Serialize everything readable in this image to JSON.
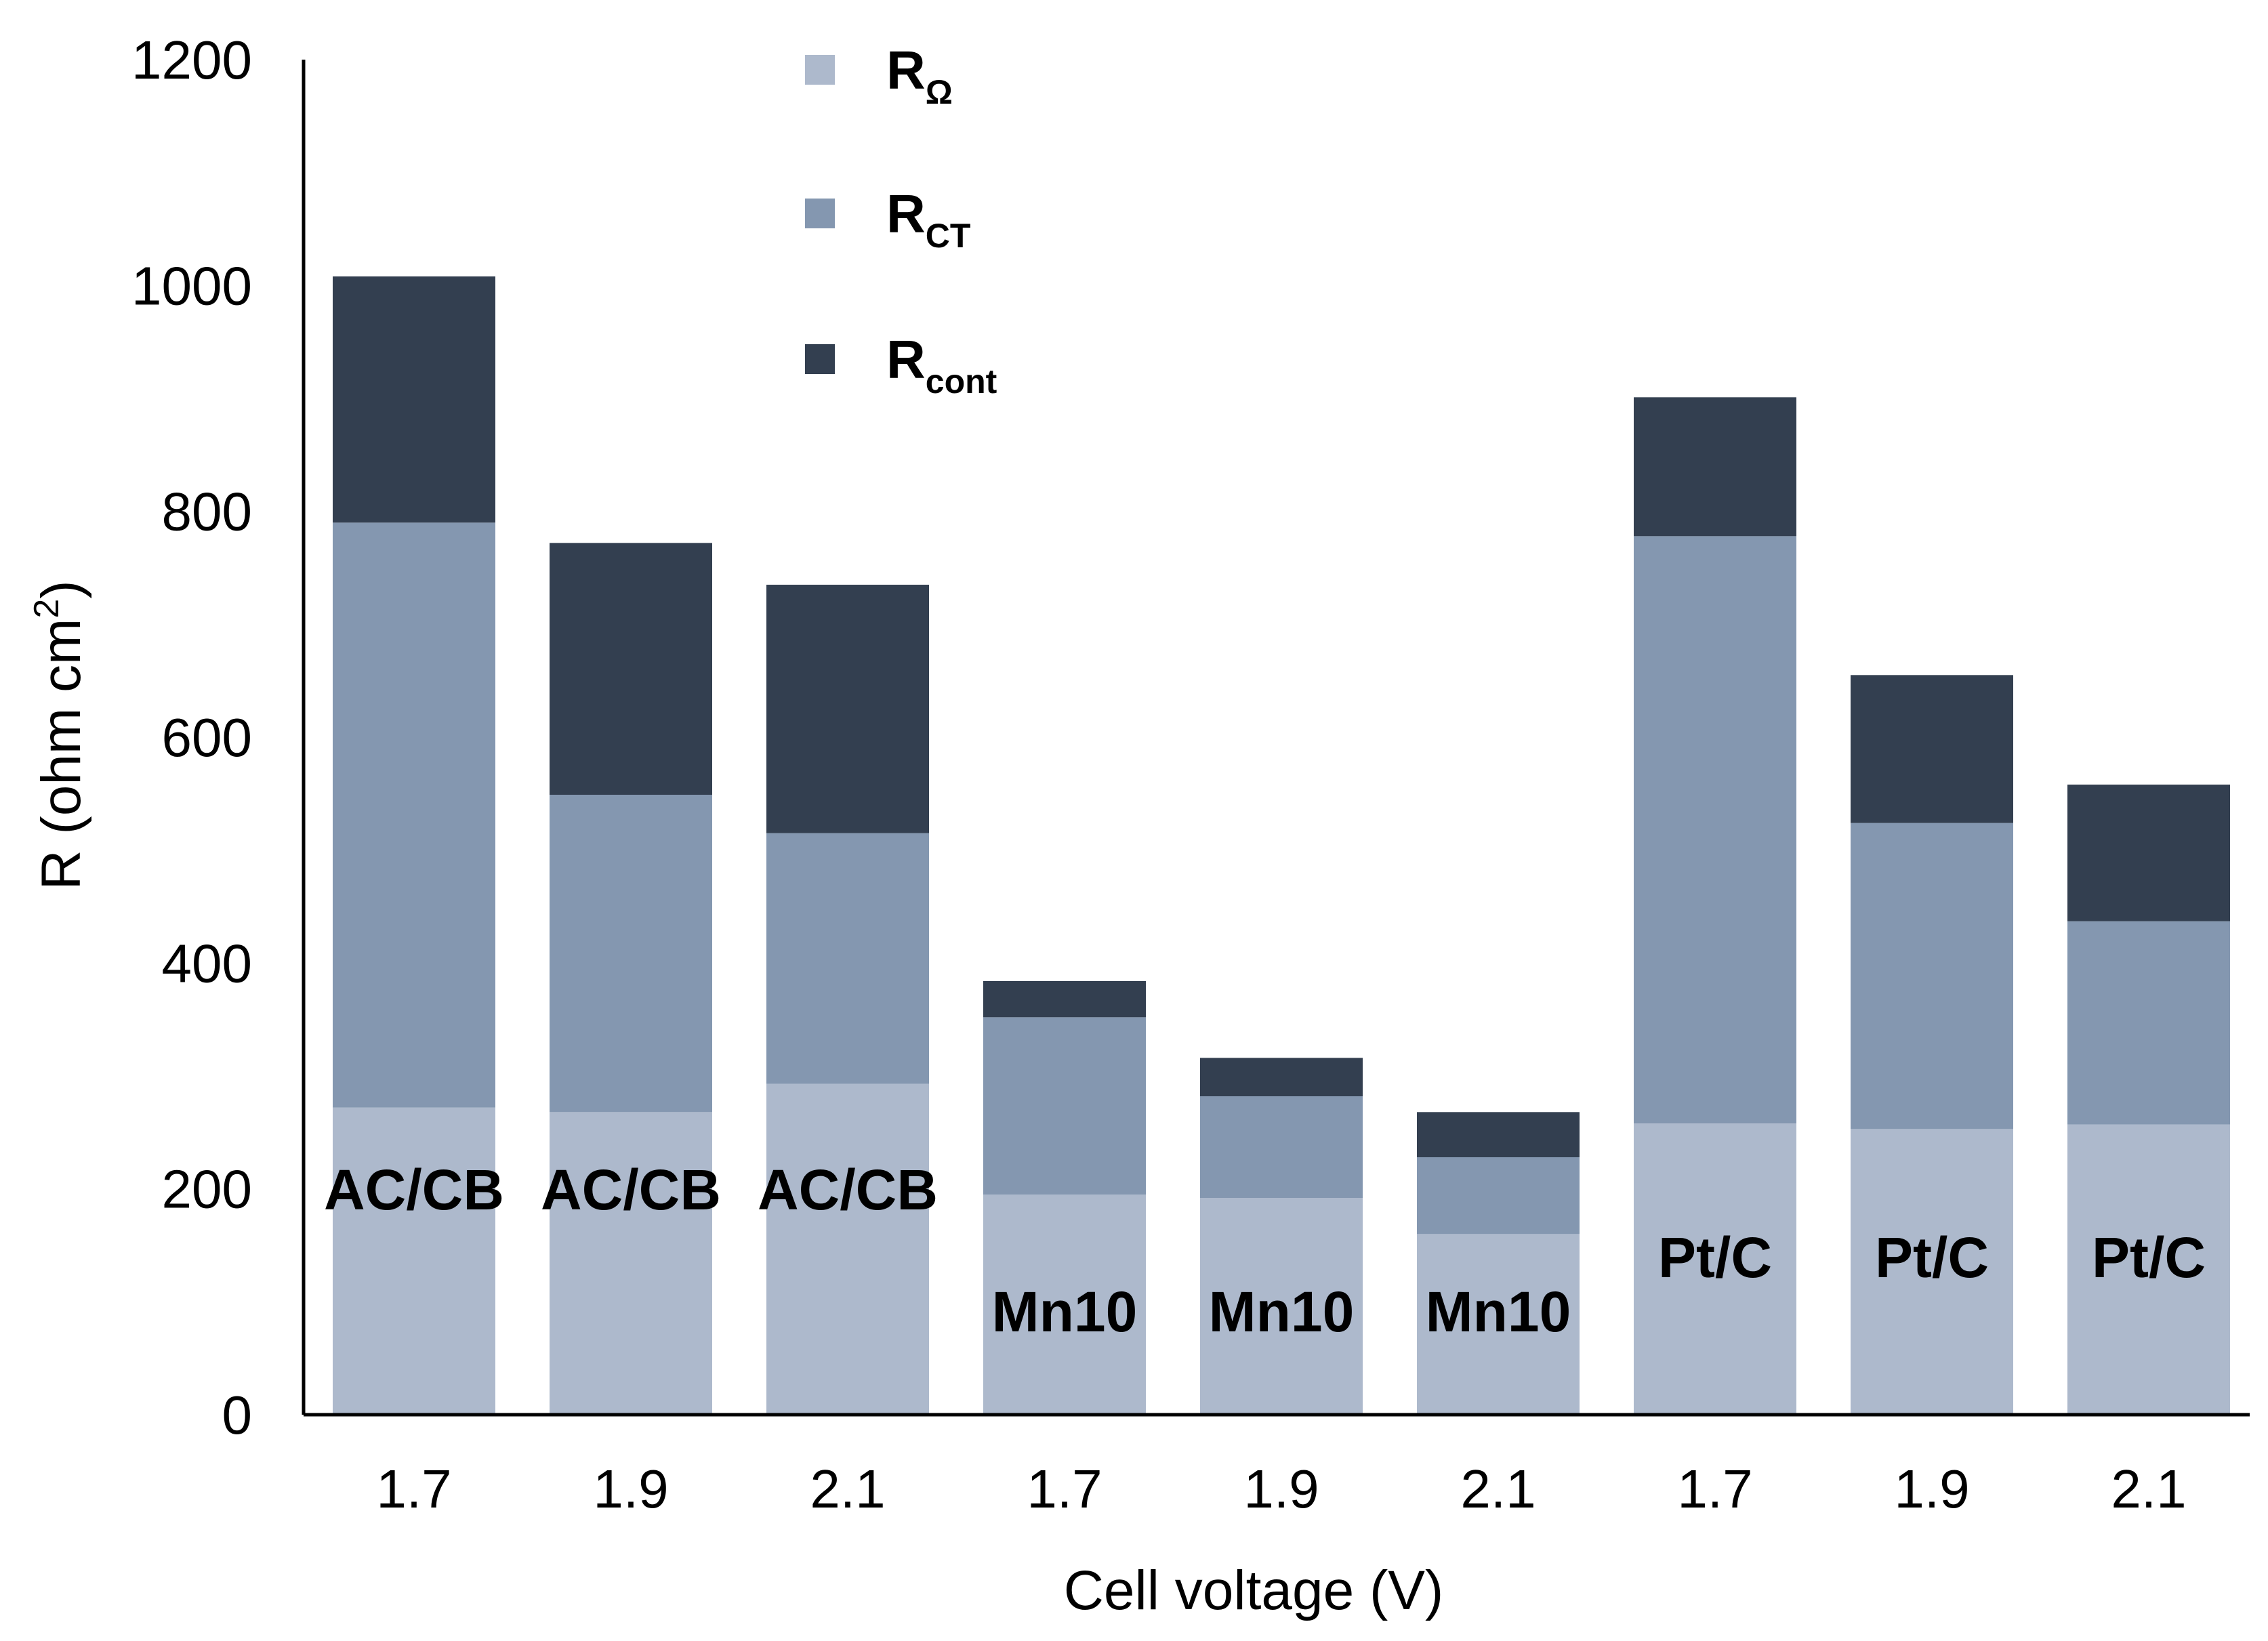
{
  "chart_data": {
    "type": "bar",
    "stacked": true,
    "title": "",
    "xlabel": "Cell voltage  (V)",
    "ylabel": "R (ohm cm²)",
    "ylabel_parts": {
      "main": "R (ohm cm",
      "sup": "2",
      "end": ")"
    },
    "ylim": [
      0,
      1200
    ],
    "yticks": [
      0,
      200,
      400,
      600,
      800,
      1000,
      1200
    ],
    "categories": [
      "1.7",
      "1.9",
      "2.1",
      "1.7",
      "1.9",
      "2.1",
      "1.7",
      "1.9",
      "2.1"
    ],
    "group_labels": [
      "AC/CB",
      "AC/CB",
      "AC/CB",
      "Mn10",
      "Mn10",
      "Mn10",
      "Pt/C",
      "Pt/C",
      "Pt/C"
    ],
    "series": [
      {
        "name": "RΩ",
        "base": "R",
        "sub": "Ω",
        "color": "#adb9cc",
        "values": [
          272,
          268,
          293,
          195,
          192,
          160,
          258,
          253,
          257
        ]
      },
      {
        "name": "RCT",
        "base": "R",
        "sub": "CT",
        "color": "#8497b0",
        "values": [
          518,
          281,
          222,
          157,
          90,
          68,
          520,
          271,
          180
        ]
      },
      {
        "name": "Rcont",
        "base": "R",
        "sub": "cont",
        "color": "#333f50",
        "values": [
          218,
          223,
          220,
          32,
          34,
          40,
          123,
          131,
          121
        ]
      }
    ],
    "legend_position": "top-left",
    "grid": false
  }
}
